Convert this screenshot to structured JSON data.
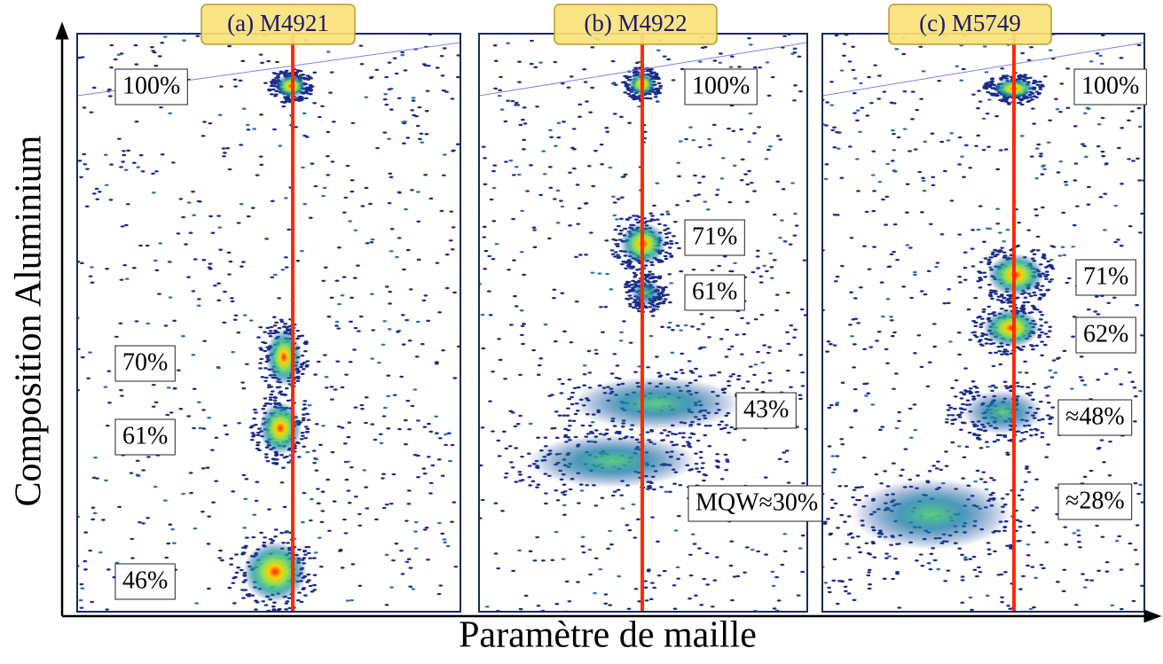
{
  "axes": {
    "y_label": "Composition Aluminium",
    "x_label": "Paramètre de maille"
  },
  "panels": [
    {
      "title": "(a) M4921",
      "labels": [
        "100%",
        "70%",
        "61%",
        "46%"
      ]
    },
    {
      "title": "(b) M4922",
      "labels": [
        "100%",
        "71%",
        "61%",
        "43%",
        "MQW≈30%"
      ]
    },
    {
      "title": "(c) M5749",
      "labels": [
        "100%",
        "71%",
        "62%",
        "≈48%",
        "≈28%"
      ]
    }
  ]
}
